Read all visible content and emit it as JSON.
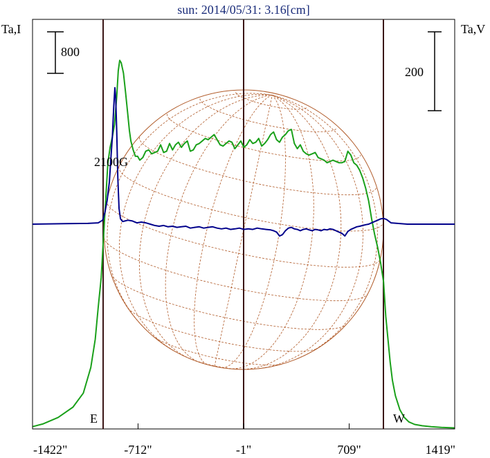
{
  "chart_data": {
    "type": "line",
    "title": "sun: 2014/05/31: 3.16[cm]",
    "left_axis_label": "Ta,I",
    "right_axis_label": "Ta,V",
    "x_ticks": [
      "-1422\"",
      "-712\"",
      "-1\"",
      "709\"",
      "1419\""
    ],
    "x_tick_values": [
      -1422,
      -712,
      -1,
      709,
      1419
    ],
    "xlim": [
      -1422,
      1419
    ],
    "limb_markers": [
      {
        "label": "E",
        "x": -952
      },
      {
        "label": "W",
        "x": 952
      }
    ],
    "center_line_x": -1,
    "scale_bars": [
      {
        "label": "800",
        "side": "left"
      },
      {
        "label": "200",
        "side": "right"
      }
    ],
    "annotations": [
      {
        "label": "2100G"
      }
    ],
    "solar_disk": {
      "radius_arcsec": 952,
      "grid": true
    },
    "series": [
      {
        "key": "I",
        "color": "#1aa01a",
        "x": [
          -1422,
          -1350,
          -1250,
          -1150,
          -1080,
          -1030,
          -1000,
          -980,
          -960,
          -945,
          -930,
          -915,
          -900,
          -885,
          -870,
          -855,
          -845,
          -835,
          -825,
          -810,
          -795,
          -780,
          -770,
          -760,
          -745,
          -730,
          -715,
          -700,
          -680,
          -660,
          -640,
          -620,
          -600,
          -580,
          -560,
          -540,
          -520,
          -500,
          -480,
          -460,
          -440,
          -420,
          -400,
          -380,
          -360,
          -340,
          -320,
          -300,
          -280,
          -260,
          -240,
          -220,
          -200,
          -180,
          -160,
          -140,
          -120,
          -100,
          -80,
          -60,
          -40,
          -20,
          0,
          20,
          40,
          60,
          80,
          100,
          120,
          140,
          160,
          180,
          200,
          220,
          240,
          260,
          280,
          300,
          320,
          340,
          360,
          380,
          400,
          420,
          440,
          460,
          480,
          500,
          520,
          540,
          560,
          580,
          600,
          620,
          640,
          660,
          680,
          700,
          720,
          740,
          760,
          780,
          800,
          820,
          840,
          860,
          880,
          900,
          920,
          940,
          955,
          970,
          985,
          1000,
          1020,
          1050,
          1080,
          1110,
          1150,
          1200,
          1260,
          1330,
          1419
        ],
        "y": [
          18,
          40,
          90,
          170,
          280,
          480,
          700,
          950,
          1180,
          1480,
          1780,
          2080,
          2200,
          2280,
          2380,
          2600,
          2800,
          2880,
          2860,
          2780,
          2620,
          2450,
          2330,
          2250,
          2180,
          2130,
          2130,
          2100,
          2120,
          2170,
          2180,
          2150,
          2160,
          2170,
          2220,
          2160,
          2170,
          2230,
          2180,
          2220,
          2240,
          2200,
          2230,
          2250,
          2170,
          2180,
          2220,
          2230,
          2250,
          2270,
          2260,
          2280,
          2300,
          2260,
          2220,
          2210,
          2230,
          2250,
          2240,
          2190,
          2220,
          2250,
          2200,
          2220,
          2260,
          2230,
          2240,
          2270,
          2210,
          2230,
          2260,
          2300,
          2320,
          2260,
          2240,
          2280,
          2300,
          2330,
          2340,
          2230,
          2190,
          2220,
          2170,
          2150,
          2140,
          2150,
          2160,
          2120,
          2110,
          2100,
          2080,
          2090,
          2100,
          2090,
          2080,
          2080,
          2090,
          2170,
          2140,
          2080,
          2060,
          2020,
          1960,
          1880,
          1780,
          1640,
          1520,
          1420,
          1300,
          1150,
          880,
          700,
          520,
          380,
          260,
          150,
          90,
          55,
          35,
          25,
          18,
          12,
          8
        ],
        "ylim": [
          0,
          3200
        ]
      },
      {
        "key": "V",
        "color": "#00008b",
        "x": [
          -1422,
          -1200,
          -1050,
          -980,
          -950,
          -935,
          -920,
          -905,
          -895,
          -885,
          -875,
          -868,
          -862,
          -855,
          -848,
          -840,
          -830,
          -815,
          -800,
          -780,
          -750,
          -720,
          -690,
          -660,
          -630,
          -600,
          -570,
          -540,
          -510,
          -480,
          -450,
          -420,
          -390,
          -360,
          -330,
          -300,
          -270,
          -240,
          -210,
          -180,
          -150,
          -120,
          -90,
          -60,
          -30,
          0,
          30,
          60,
          90,
          120,
          150,
          180,
          200,
          220,
          240,
          260,
          280,
          300,
          320,
          340,
          360,
          380,
          400,
          420,
          440,
          460,
          480,
          500,
          520,
          540,
          560,
          580,
          600,
          620,
          640,
          660,
          680,
          700,
          720,
          740,
          760,
          780,
          800,
          820,
          840,
          860,
          880,
          900,
          920,
          940,
          960,
          990,
          1100,
          1250,
          1419
        ],
        "y": [
          0,
          2,
          3,
          5,
          15,
          45,
          90,
          160,
          250,
          330,
          450,
          520,
          480,
          350,
          180,
          60,
          20,
          10,
          12,
          15,
          12,
          5,
          8,
          5,
          0,
          -5,
          -8,
          -5,
          -10,
          -8,
          -12,
          -10,
          -8,
          -15,
          -12,
          -10,
          -15,
          -12,
          -10,
          -15,
          -18,
          -15,
          -20,
          -18,
          -15,
          -20,
          -18,
          -20,
          -15,
          -18,
          -20,
          -22,
          -25,
          -30,
          -45,
          -40,
          -25,
          -15,
          -12,
          -18,
          -20,
          -25,
          -20,
          -18,
          -22,
          -25,
          -20,
          -22,
          -25,
          -20,
          -22,
          -18,
          -20,
          -25,
          -30,
          -35,
          -45,
          -28,
          -20,
          -15,
          -10,
          -8,
          -5,
          -2,
          0,
          5,
          10,
          15,
          20,
          22,
          18,
          5,
          0,
          0,
          0
        ],
        "ylim": [
          -780,
          780
        ]
      }
    ]
  }
}
